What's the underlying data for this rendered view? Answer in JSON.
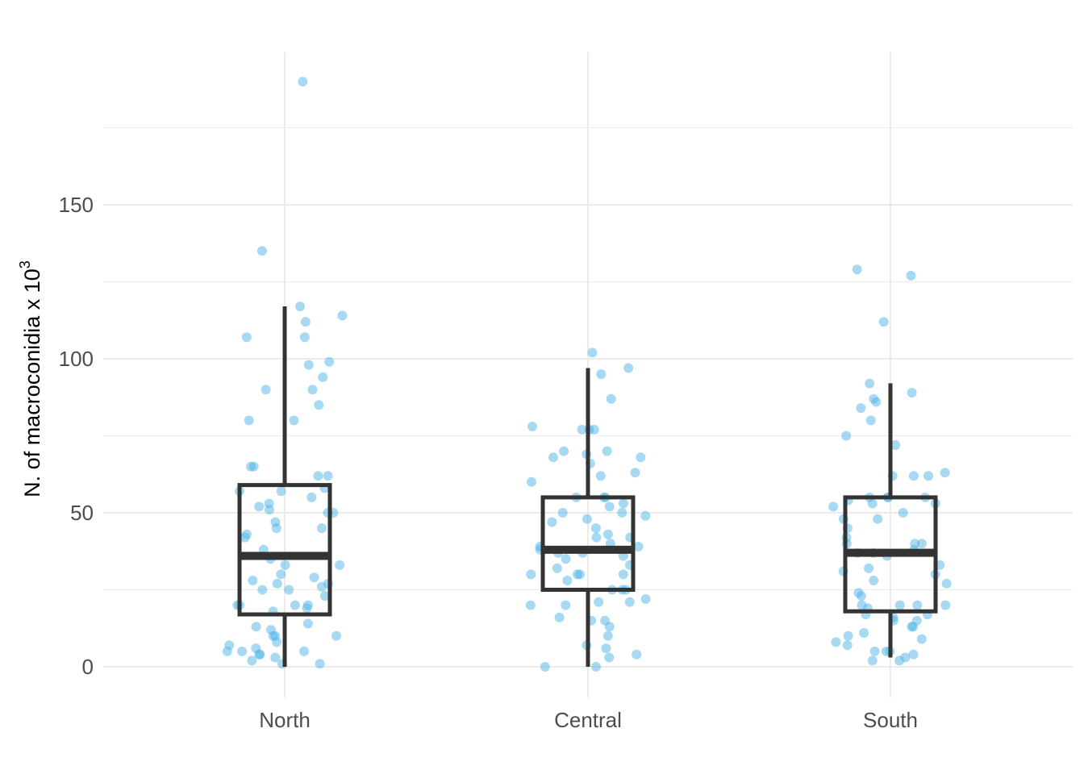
{
  "chart_data": {
    "type": "box",
    "overlay": "jittered points",
    "categories": [
      "North",
      "Central",
      "South"
    ],
    "ylabel": "N. of macroconidia x 10",
    "ylabel_superscript": "3",
    "xlabel": "",
    "ylim": [
      -10,
      200
    ],
    "yticks": [
      0,
      50,
      100,
      150
    ],
    "grid": true,
    "colors": {
      "points": "#4FB3E8",
      "box": "#333333",
      "grid": "#EBEBEB"
    },
    "boxes": [
      {
        "category": "North",
        "whisker_low": 0,
        "q1": 17,
        "median": 36,
        "q3": 59,
        "whisker_high": 117
      },
      {
        "category": "Central",
        "whisker_low": 0,
        "q1": 25,
        "median": 38,
        "q3": 55,
        "whisker_high": 97
      },
      {
        "category": "South",
        "whisker_low": 3,
        "q1": 18,
        "median": 37,
        "q3": 55,
        "whisker_high": 92
      }
    ],
    "points": [
      {
        "category": "North",
        "values": [
          190,
          135,
          117,
          114,
          112,
          107,
          107,
          99,
          98,
          94,
          90,
          90,
          85,
          80,
          80,
          65,
          65,
          62,
          62,
          58,
          57,
          57,
          55,
          53,
          52,
          51,
          50,
          50,
          47,
          45,
          45,
          43,
          42,
          38,
          35,
          33,
          33,
          30,
          29,
          28,
          27,
          27,
          26,
          25,
          25,
          23,
          20,
          20,
          20,
          20,
          19,
          18,
          14,
          13,
          12,
          10,
          10,
          10,
          8,
          7,
          6,
          5,
          5,
          5,
          4,
          4,
          3,
          2,
          1,
          1
        ]
      },
      {
        "category": "Central",
        "values": [
          102,
          97,
          95,
          87,
          78,
          77,
          77,
          77,
          70,
          70,
          69,
          68,
          68,
          66,
          63,
          62,
          60,
          55,
          55,
          55,
          53,
          52,
          50,
          50,
          49,
          48,
          47,
          45,
          43,
          42,
          42,
          40,
          39,
          39,
          38,
          37,
          37,
          36,
          35,
          33,
          32,
          30,
          30,
          30,
          30,
          28,
          25,
          25,
          25,
          22,
          21,
          21,
          20,
          20,
          16,
          15,
          15,
          13,
          10,
          7,
          6,
          4,
          3,
          0,
          0
        ]
      },
      {
        "category": "South",
        "values": [
          129,
          127,
          112,
          92,
          89,
          87,
          86,
          84,
          80,
          75,
          72,
          63,
          62,
          62,
          62,
          55,
          55,
          55,
          55,
          54,
          53,
          53,
          52,
          50,
          48,
          48,
          45,
          42,
          40,
          40,
          40,
          38,
          37,
          37,
          36,
          33,
          32,
          31,
          30,
          28,
          27,
          24,
          23,
          20,
          20,
          20,
          20,
          19,
          17,
          17,
          16,
          15,
          15,
          13,
          13,
          11,
          10,
          9,
          8,
          7,
          5,
          5,
          5,
          4,
          3,
          2,
          2
        ]
      }
    ]
  }
}
